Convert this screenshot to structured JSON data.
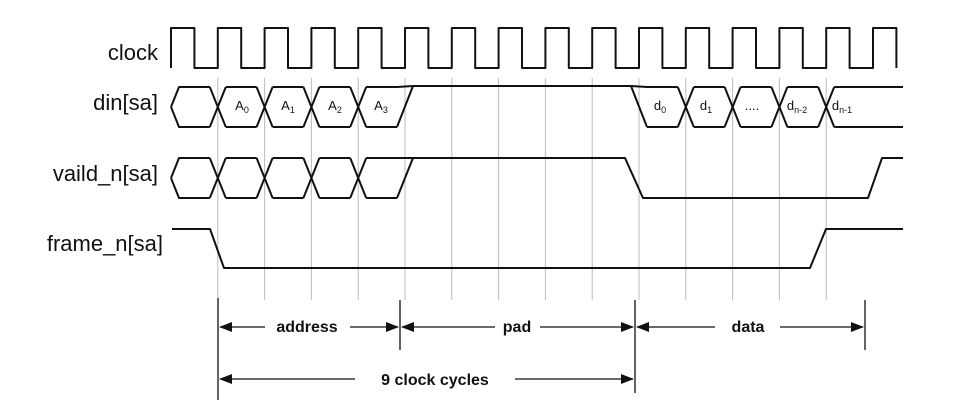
{
  "signals": {
    "clock": "clock",
    "din": "din[sa]",
    "valid": "vaild_n[sa]",
    "frame": "frame_n[sa]"
  },
  "din_cells": [
    {
      "main": "A",
      "sub": "0"
    },
    {
      "main": "A",
      "sub": "1"
    },
    {
      "main": "A",
      "sub": "2"
    },
    {
      "main": "A",
      "sub": "3"
    },
    {
      "main": "d",
      "sub": "0"
    },
    {
      "main": "d",
      "sub": "1"
    },
    {
      "main": "....",
      "sub": ""
    },
    {
      "main": "d",
      "sub": "n-2"
    },
    {
      "main": "d",
      "sub": "n-1"
    }
  ],
  "spans": {
    "address": "address",
    "pad": "pad",
    "data": "data",
    "total": "9 clock cycles"
  },
  "colors": {
    "ink": "#111111",
    "grid": "#bcbcbc"
  }
}
